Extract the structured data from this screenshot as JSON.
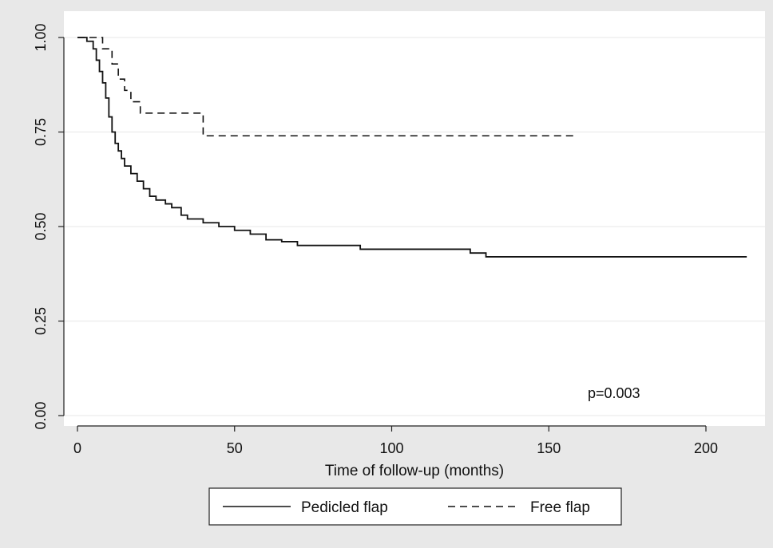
{
  "chart_data": {
    "type": "line",
    "title": "",
    "xlabel": "Time of follow-up (months)",
    "ylabel": "",
    "xlim": [
      0,
      215
    ],
    "ylim": [
      0,
      1.0
    ],
    "x_ticks": [
      0,
      50,
      100,
      150,
      200
    ],
    "x_tick_labels": [
      "0",
      "50",
      "100",
      "150",
      "200"
    ],
    "y_ticks": [
      0,
      0.25,
      0.5,
      0.75,
      1.0
    ],
    "y_tick_labels": [
      "0.00",
      "0.25",
      "0.50",
      "0.75",
      "1.00"
    ],
    "grid": "horizontal",
    "legend_position": "bottom",
    "annotation": "p=0.003",
    "colors": {
      "background": "#e8e8e8",
      "plot_area": "#ffffff",
      "line": "#111111"
    },
    "series": [
      {
        "name": "Pedicled flap",
        "style": "solid",
        "x": [
          0,
          3,
          5,
          6,
          7,
          8,
          9,
          10,
          11,
          12,
          13,
          14,
          15,
          17,
          19,
          21,
          23,
          25,
          28,
          30,
          33,
          35,
          40,
          45,
          50,
          55,
          60,
          65,
          70,
          80,
          90,
          110,
          125,
          130,
          150,
          180,
          213
        ],
        "y": [
          1.0,
          0.99,
          0.97,
          0.94,
          0.91,
          0.88,
          0.84,
          0.79,
          0.75,
          0.72,
          0.7,
          0.68,
          0.66,
          0.64,
          0.62,
          0.6,
          0.58,
          0.57,
          0.56,
          0.55,
          0.53,
          0.52,
          0.51,
          0.5,
          0.49,
          0.48,
          0.465,
          0.46,
          0.45,
          0.45,
          0.44,
          0.44,
          0.43,
          0.42,
          0.42,
          0.42,
          0.42
        ]
      },
      {
        "name": "Free flap",
        "style": "dashed",
        "x": [
          0,
          4,
          8,
          11,
          13,
          15,
          17,
          20,
          40,
          158
        ],
        "y": [
          1.0,
          1.0,
          0.97,
          0.93,
          0.89,
          0.86,
          0.83,
          0.8,
          0.74,
          0.74
        ]
      }
    ]
  }
}
